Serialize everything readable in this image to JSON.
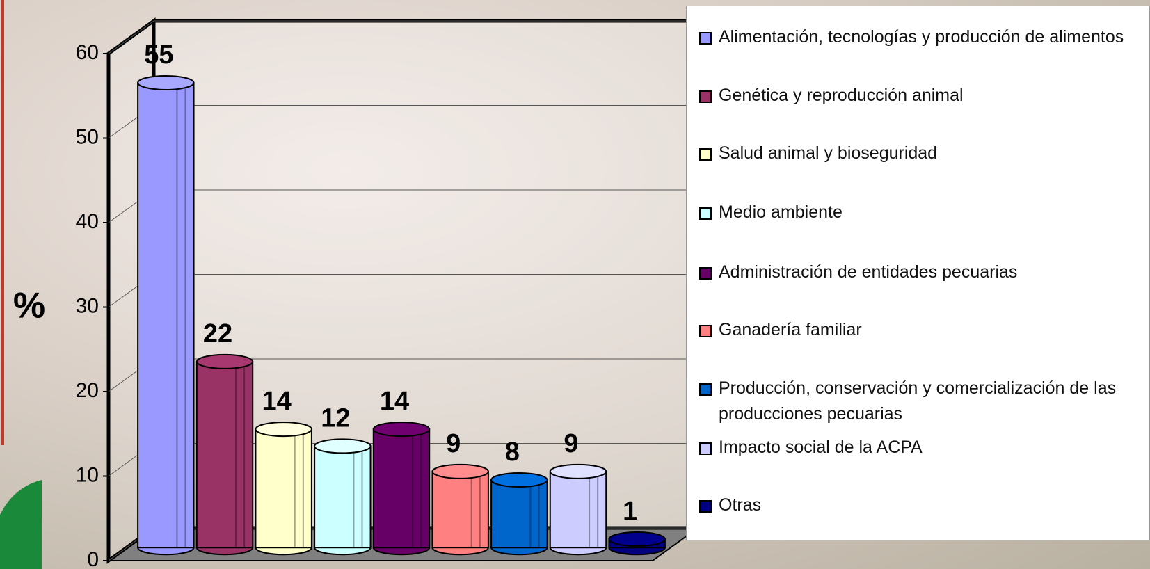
{
  "chart_data": {
    "type": "bar3d",
    "y_label": "%",
    "categories": [
      "Alimentación, tecnologías y producción de alimentos",
      "Genética y reproducción animal",
      "Salud animal y bioseguridad",
      "Medio ambiente",
      "Administración de entidades pecuarias",
      "Ganadería familiar",
      "Producción, conservación y comercialización de las producciones pecuarias",
      "Impacto social de la ACPA",
      "Otras"
    ],
    "values": [
      55,
      22,
      14,
      12,
      14,
      9,
      8,
      9,
      1
    ],
    "colors": [
      "#9999ff",
      "#993366",
      "#ffffcc",
      "#ccffff",
      "#660066",
      "#ff8080",
      "#0066cc",
      "#ccccff",
      "#000080"
    ],
    "ylim": [
      0,
      60
    ],
    "yticks": [
      0,
      10,
      20,
      30,
      40,
      50,
      60
    ],
    "grid": true,
    "legend": "right"
  }
}
